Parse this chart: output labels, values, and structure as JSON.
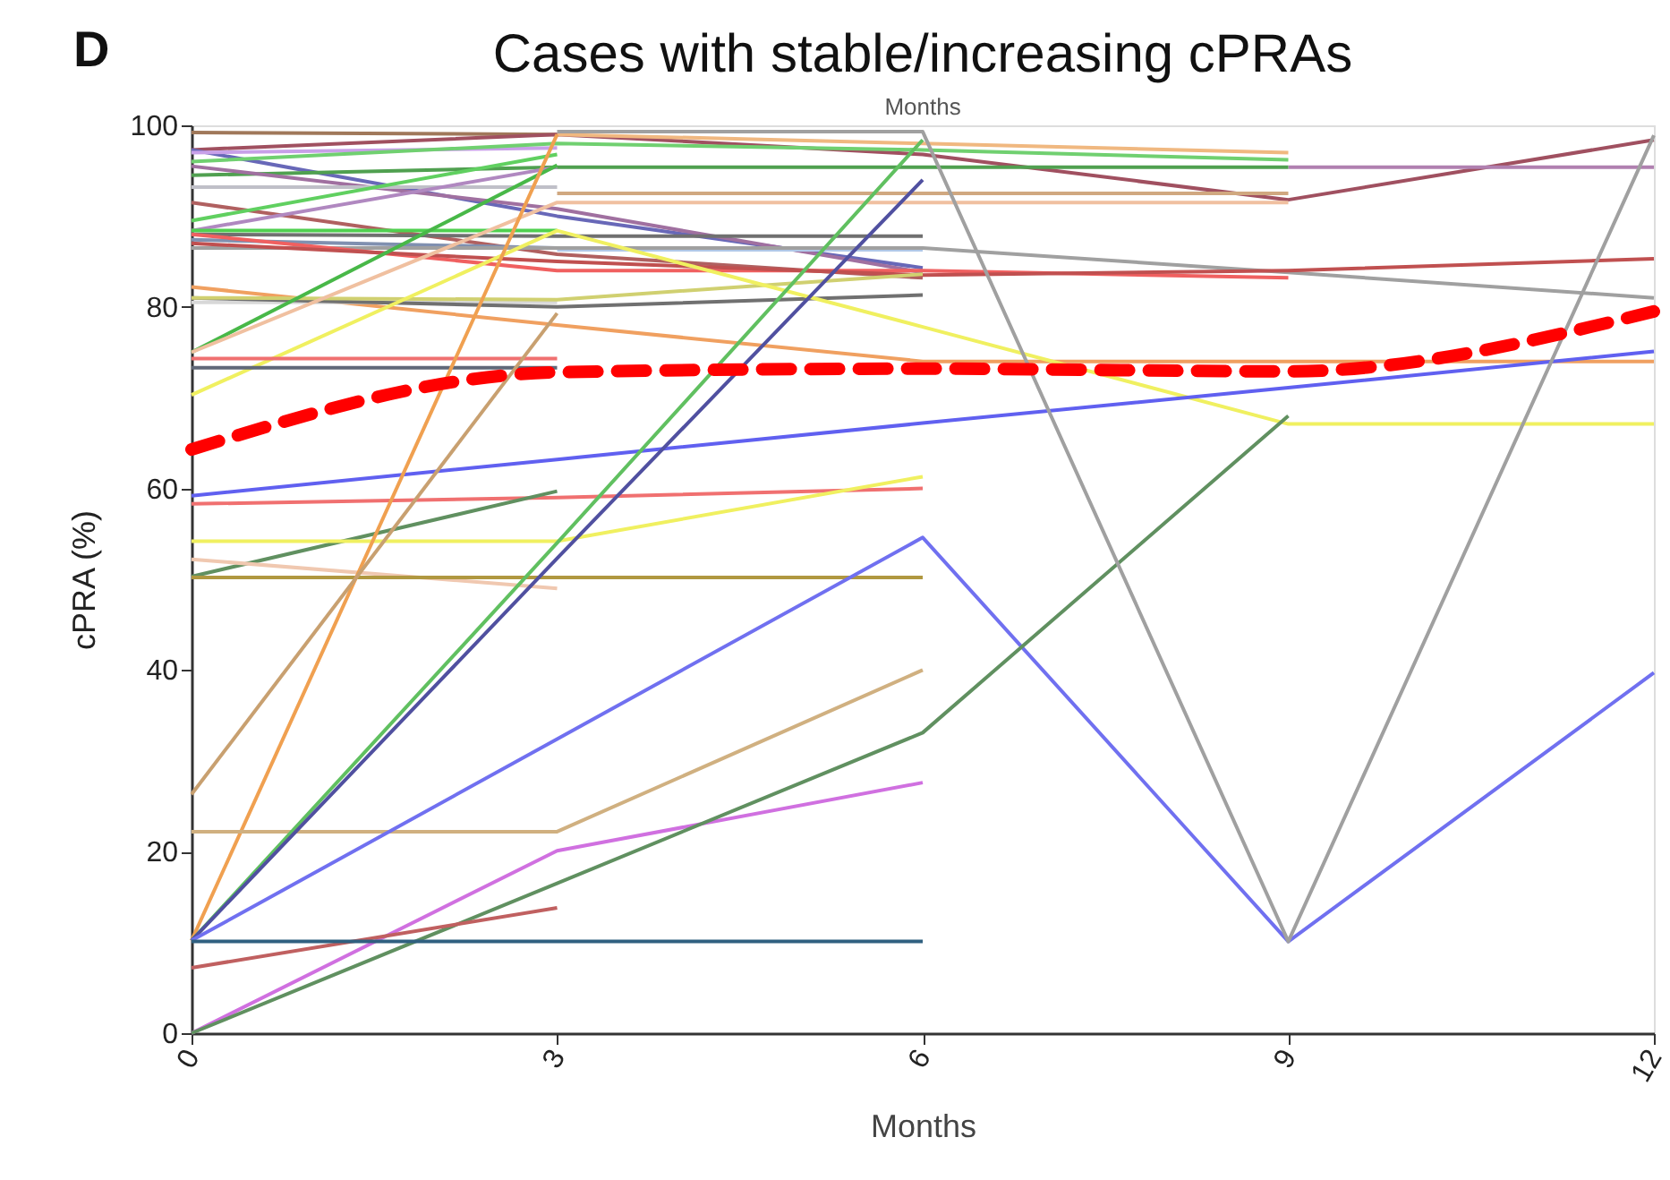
{
  "chart_data": {
    "type": "line",
    "title": "Cases with stable/increasing cPRAs",
    "xlabel": "Months",
    "ylabel": "cPRA (%)",
    "annotations": [
      "D",
      "Months"
    ],
    "x": [
      0,
      3,
      6,
      9,
      12
    ],
    "xlim": [
      0,
      12
    ],
    "xticks": [
      0,
      3,
      6,
      9,
      12
    ],
    "ylim": [
      0,
      100
    ],
    "yticks": [
      0,
      20,
      40,
      60,
      80,
      100
    ],
    "series": [
      {
        "color": "#a0785a",
        "values": [
          99.2,
          99.0,
          null,
          null,
          null
        ]
      },
      {
        "color": "#a05060",
        "values": [
          97.3,
          99.0,
          96.8,
          91.8,
          98.4
        ]
      },
      {
        "color": "#6868b8",
        "values": [
          97.3,
          90.0,
          84.3,
          null,
          null
        ]
      },
      {
        "color": "#c8a0e8",
        "values": [
          97.0,
          97.5,
          null,
          null,
          null
        ]
      },
      {
        "color": "#b080b0",
        "values": [
          null,
          null,
          null,
          95.4,
          95.4
        ]
      },
      {
        "color": "#70d070",
        "values": [
          96.0,
          98.0,
          97.3,
          96.2,
          null
        ]
      },
      {
        "color": "#50a050",
        "values": [
          94.5,
          95.4,
          95.4,
          95.4,
          null
        ]
      },
      {
        "color": "#a070a0",
        "values": [
          95.5,
          90.8,
          83.8,
          null,
          null
        ]
      },
      {
        "color": "#c0c0c8",
        "values": [
          93.2,
          93.2,
          null,
          null,
          null
        ]
      },
      {
        "color": "#d0a880",
        "values": [
          null,
          92.5,
          92.5,
          92.5,
          null
        ]
      },
      {
        "color": "#f0b880",
        "values": [
          null,
          99.0,
          98.0,
          97.0,
          null
        ]
      },
      {
        "color": "#b06060",
        "values": [
          91.5,
          85.8,
          83.2,
          null,
          null
        ]
      },
      {
        "color": "#60d060",
        "values": [
          89.5,
          96.8,
          null,
          null,
          null
        ]
      },
      {
        "color": "#b088c0",
        "values": [
          88.4,
          95.4,
          null,
          null,
          null
        ]
      },
      {
        "color": "#50d050",
        "values": [
          88.4,
          88.4,
          null,
          null,
          null
        ]
      },
      {
        "color": "#707070",
        "values": [
          88.0,
          87.8,
          87.8,
          null,
          null
        ]
      },
      {
        "color": "#8090b0",
        "values": [
          87.4,
          86.5,
          null,
          null,
          null
        ]
      },
      {
        "color": "#b0c8e8",
        "values": [
          null,
          86.3,
          86.3,
          null,
          null
        ]
      },
      {
        "color": "#a0a0a0",
        "values": [
          86.5,
          86.5,
          86.5,
          83.8,
          81.0
        ]
      },
      {
        "color": "#f06060",
        "values": [
          88.0,
          84.0,
          84.0,
          83.2,
          null
        ]
      },
      {
        "color": "#c05050",
        "values": [
          87.0,
          85.0,
          83.5,
          84.0,
          85.3
        ]
      },
      {
        "color": "#f0a060",
        "values": [
          82.2,
          78.0,
          74.0,
          74.0,
          74.0
        ]
      },
      {
        "color": "#d8d8d8",
        "values": [
          80.5,
          80.5,
          null,
          null,
          null
        ]
      },
      {
        "color": "#707070",
        "values": [
          81.0,
          80.0,
          81.3,
          null,
          null
        ]
      },
      {
        "color": "#d0d070",
        "values": [
          81.0,
          80.8,
          83.6,
          null,
          null
        ]
      },
      {
        "color": "#48b848",
        "values": [
          75.0,
          95.6,
          null,
          null,
          null
        ]
      },
      {
        "color": "#f0c0a0",
        "values": [
          75.0,
          91.5,
          91.5,
          91.5,
          null
        ]
      },
      {
        "color": "#f0f060",
        "values": [
          70.3,
          88.4,
          77.8,
          67.1,
          67.1
        ]
      },
      {
        "color": "#f07070",
        "values": [
          74.3,
          74.3,
          null,
          null,
          null
        ]
      },
      {
        "color": "#606878",
        "values": [
          73.3,
          73.3,
          null,
          null,
          null
        ]
      },
      {
        "color": "#6060f0",
        "values": [
          59.2,
          63.2,
          67.2,
          71.1,
          75.1
        ]
      },
      {
        "color": "#f07070",
        "values": [
          58.3,
          59.0,
          60.0,
          null,
          null
        ]
      },
      {
        "color": "#609060",
        "values": [
          50.3,
          59.7,
          null,
          null,
          null
        ]
      },
      {
        "color": "#f0f060",
        "values": [
          54.2,
          54.2,
          61.3,
          null,
          null
        ]
      },
      {
        "color": "#f0c8b0",
        "values": [
          52.2,
          49.0,
          null,
          null,
          null
        ]
      },
      {
        "color": "#b09840",
        "values": [
          50.2,
          50.2,
          50.2,
          null,
          null
        ]
      },
      {
        "color": "#f0a050",
        "values": [
          10.2,
          99.0,
          null,
          null,
          null
        ]
      },
      {
        "color": "#c8a070",
        "values": [
          26.3,
          79.3,
          null,
          null,
          null
        ]
      },
      {
        "color": "#d0b080",
        "values": [
          22.2,
          22.2,
          40.0,
          null,
          null
        ]
      },
      {
        "color": "#60c060",
        "values": [
          10.2,
          54.0,
          98.4,
          null,
          null
        ]
      },
      {
        "color": "#5050a0",
        "values": [
          10.2,
          52.3,
          94.0,
          null,
          null
        ]
      },
      {
        "color": "#7070f0",
        "values": [
          10.2,
          32.4,
          54.6,
          10.1,
          39.7
        ]
      },
      {
        "color": "#d070e0",
        "values": [
          0,
          20.1,
          27.6,
          null,
          null
        ]
      },
      {
        "color": "#609060",
        "values": [
          0,
          16.5,
          33.1,
          68.0,
          null
        ]
      },
      {
        "color": "#c06060",
        "values": [
          7.2,
          13.8,
          null,
          null,
          null
        ]
      },
      {
        "color": "#306080",
        "values": [
          10.1,
          10.1,
          10.1,
          null,
          null
        ]
      },
      {
        "color": "#a0a0a0",
        "values": [
          null,
          99.3,
          99.3,
          10.1,
          98.9
        ]
      },
      {
        "color": "#ff0000",
        "line_style": "dashed",
        "values": [
          64.3,
          72.8,
          73.2,
          72.9,
          79.5
        ]
      }
    ]
  }
}
